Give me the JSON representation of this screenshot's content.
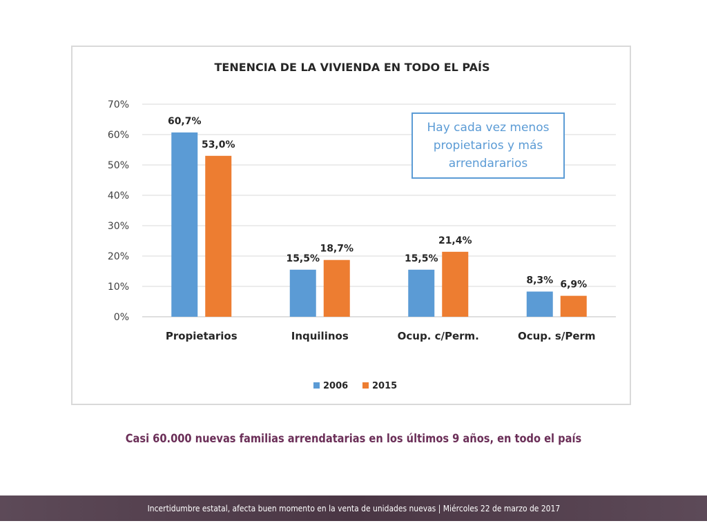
{
  "chart_data": {
    "type": "bar",
    "title": "TENENCIA DE LA VIVIENDA EN TODO EL PAÍS",
    "categories": [
      "Propietarios",
      "Inquilinos",
      "Ocup. c/Perm.",
      "Ocup. s/Perm"
    ],
    "series": [
      {
        "name": "2006",
        "values": [
          60.7,
          15.5,
          15.5,
          8.3
        ],
        "labels": [
          "60,7%",
          "15,5%",
          "15,5%",
          "8,3%"
        ],
        "color": "#5b9bd5"
      },
      {
        "name": "2015",
        "values": [
          53.0,
          18.7,
          21.4,
          6.9
        ],
        "labels": [
          "53,0%",
          "18,7%",
          "21,4%",
          "6,9%"
        ],
        "color": "#ed7d31"
      }
    ],
    "ylim": [
      0,
      70
    ],
    "y_ticks": [
      "0%",
      "10%",
      "20%",
      "30%",
      "40%",
      "50%",
      "60%",
      "70%"
    ],
    "grid": true,
    "legend_position": "bottom",
    "annotation": "Hay cada vez menos propietarios y más arrendararios"
  },
  "subtitle": "Casi 60.000 nuevas familias arrendatarias en los últimos 9 años, en todo el país",
  "footer": "Incertidumbre estatal, afecta buen momento en la venta de unidades nuevas | Miércoles 22 de marzo de 2017"
}
